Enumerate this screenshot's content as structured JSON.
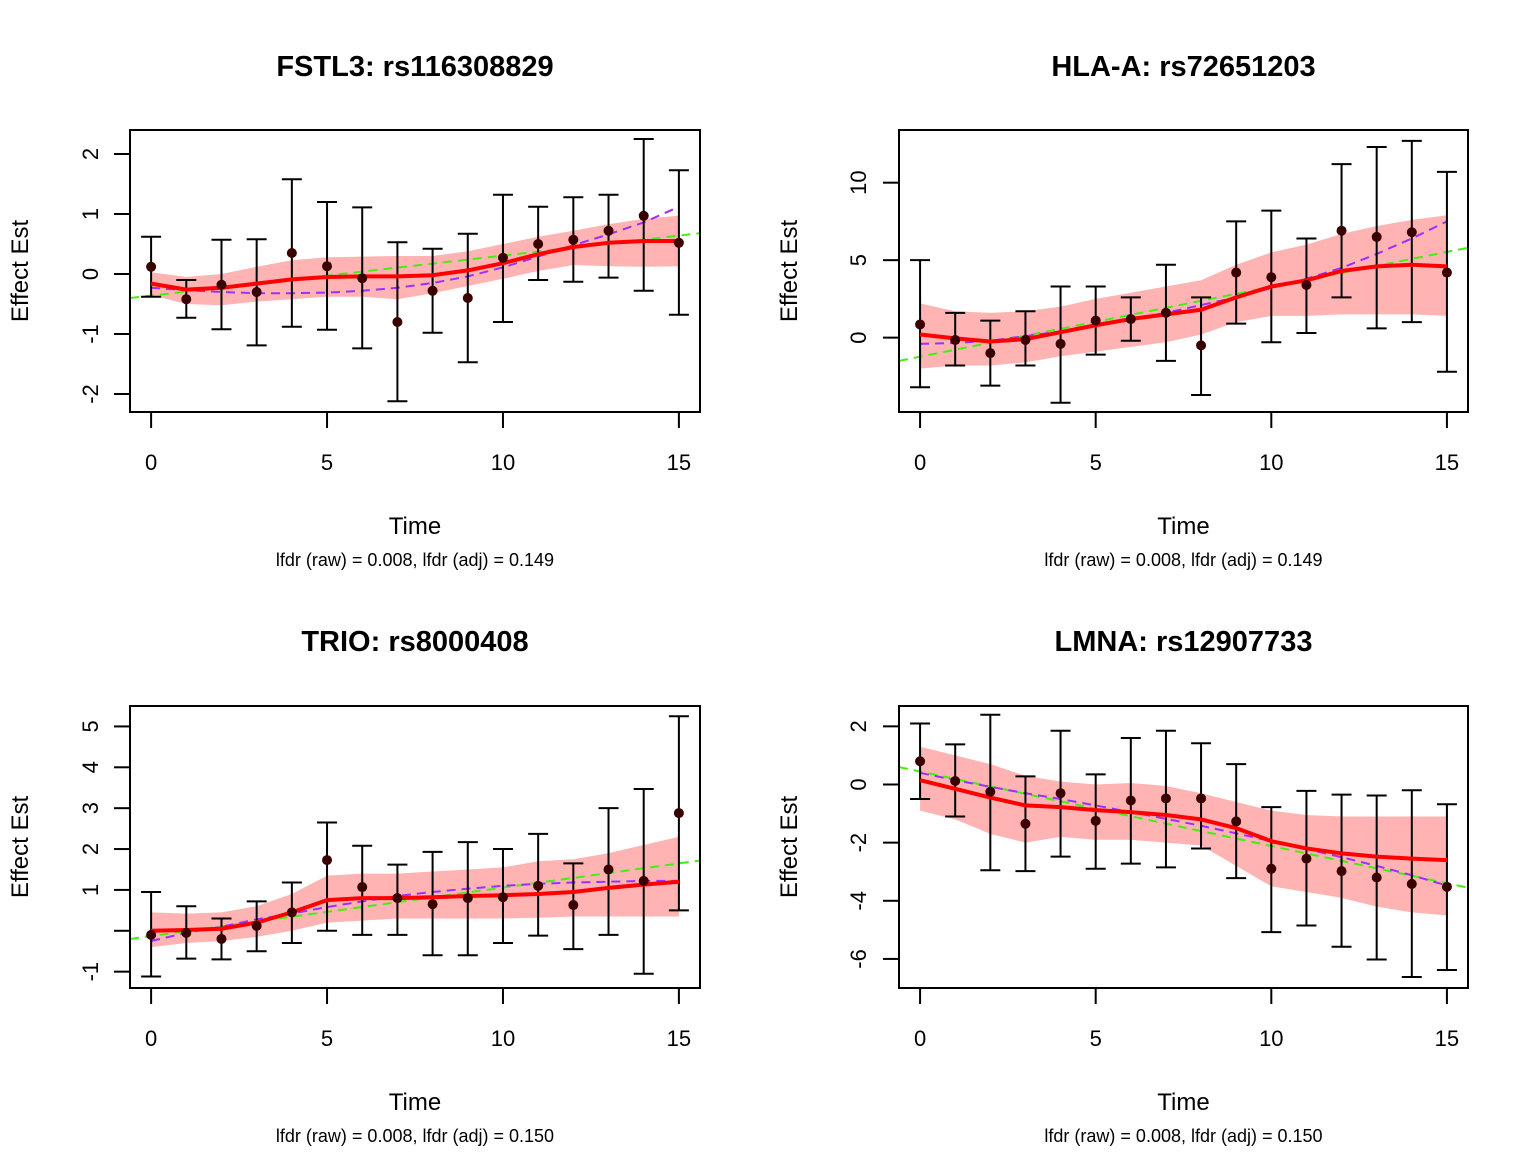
{
  "chart_data": [
    {
      "type": "line",
      "title": "FSTL3: rs116308829",
      "xlabel": "Time",
      "ylabel": "Effect Est",
      "subtitle": "lfdr (raw) = 0.008, lfdr (adj) = 0.149",
      "xlim": [
        -0.6,
        15.6
      ],
      "ylim": [
        -2.3,
        2.4
      ],
      "xticks": [
        0,
        5,
        10,
        15
      ],
      "yticks": [
        -2,
        -1,
        0,
        1,
        2
      ],
      "ytick_labels": [
        "-2",
        "-1",
        "0",
        "1",
        "2"
      ],
      "x": [
        0,
        1,
        2,
        3,
        4,
        5,
        6,
        7,
        8,
        9,
        10,
        11,
        12,
        13,
        14,
        15
      ],
      "series": [
        {
          "name": "estimate",
          "kind": "points",
          "values": [
            0.12,
            -0.42,
            -0.18,
            -0.3,
            0.35,
            0.13,
            -0.07,
            -0.8,
            -0.28,
            -0.4,
            0.27,
            0.5,
            0.57,
            0.72,
            0.97,
            0.52
          ]
        },
        {
          "name": "ci_lower",
          "kind": "errorbar",
          "values": [
            -0.38,
            -0.73,
            -0.92,
            -1.19,
            -0.88,
            -0.93,
            -1.24,
            -2.12,
            -0.98,
            -1.47,
            -0.8,
            -0.1,
            -0.13,
            -0.06,
            -0.28,
            -0.68
          ]
        },
        {
          "name": "ci_upper",
          "kind": "errorbar",
          "values": [
            0.62,
            -0.1,
            0.57,
            0.58,
            1.58,
            1.2,
            1.11,
            0.53,
            0.42,
            0.67,
            1.32,
            1.12,
            1.28,
            1.32,
            2.25,
            1.73
          ]
        },
        {
          "name": "smooth",
          "kind": "line",
          "color": "#ff0000",
          "values": [
            -0.16,
            -0.26,
            -0.23,
            -0.16,
            -0.09,
            -0.05,
            -0.04,
            -0.04,
            -0.02,
            0.06,
            0.18,
            0.33,
            0.45,
            0.52,
            0.55,
            0.55
          ]
        },
        {
          "name": "band_lower",
          "kind": "band",
          "values": [
            -0.35,
            -0.5,
            -0.52,
            -0.46,
            -0.42,
            -0.38,
            -0.38,
            -0.42,
            -0.32,
            -0.2,
            -0.08,
            0.05,
            0.15,
            0.13,
            0.12,
            0.13
          ]
        },
        {
          "name": "band_upper",
          "kind": "band",
          "values": [
            0.03,
            -0.05,
            0.0,
            0.12,
            0.23,
            0.28,
            0.29,
            0.3,
            0.3,
            0.38,
            0.5,
            0.62,
            0.72,
            0.83,
            0.92,
            0.97
          ]
        },
        {
          "name": "quadratic_fit",
          "kind": "dashed",
          "color": "#9b30ff",
          "values": [
            -0.23,
            -0.27,
            -0.3,
            -0.32,
            -0.32,
            -0.31,
            -0.28,
            -0.23,
            -0.15,
            -0.04,
            0.11,
            0.29,
            0.48,
            0.66,
            0.86,
            1.12
          ]
        },
        {
          "name": "linear_fit",
          "kind": "dashed",
          "color": "#44ee11",
          "x": [
            -0.6,
            15.6
          ],
          "values": [
            -0.4,
            0.68
          ]
        }
      ]
    },
    {
      "type": "line",
      "title": "HLA-A: rs72651203",
      "xlabel": "Time",
      "ylabel": "Effect Est",
      "subtitle": "lfdr (raw) = 0.008, lfdr (adj) = 0.149",
      "xlim": [
        -0.6,
        15.6
      ],
      "ylim": [
        -4.8,
        13.4
      ],
      "xticks": [
        0,
        5,
        10,
        15
      ],
      "yticks": [
        0,
        5,
        10
      ],
      "ytick_labels": [
        "0",
        "5",
        "10"
      ],
      "x": [
        0,
        1,
        2,
        3,
        4,
        5,
        6,
        7,
        8,
        9,
        10,
        11,
        12,
        13,
        14,
        15
      ],
      "series": [
        {
          "name": "estimate",
          "kind": "points",
          "values": [
            0.85,
            -0.15,
            -1.0,
            -0.15,
            -0.4,
            1.1,
            1.2,
            1.6,
            -0.5,
            4.2,
            3.9,
            3.4,
            6.9,
            6.5,
            6.8,
            4.2
          ]
        },
        {
          "name": "ci_lower",
          "kind": "errorbar",
          "values": [
            -3.2,
            -1.8,
            -3.1,
            -1.8,
            -4.2,
            -1.1,
            -0.2,
            -1.5,
            -3.7,
            0.9,
            -0.3,
            0.3,
            2.6,
            0.6,
            1.0,
            -2.2
          ]
        },
        {
          "name": "ci_upper",
          "kind": "errorbar",
          "values": [
            5.0,
            1.6,
            1.1,
            1.7,
            3.3,
            3.3,
            2.6,
            4.7,
            2.6,
            7.5,
            8.2,
            6.4,
            11.2,
            12.3,
            12.7,
            10.7
          ]
        },
        {
          "name": "smooth",
          "kind": "line",
          "color": "#ff0000",
          "values": [
            0.2,
            -0.05,
            -0.25,
            -0.1,
            0.35,
            0.8,
            1.2,
            1.5,
            1.8,
            2.6,
            3.3,
            3.7,
            4.3,
            4.6,
            4.7,
            4.6
          ]
        },
        {
          "name": "band_lower",
          "kind": "band",
          "values": [
            -2.0,
            -1.8,
            -1.8,
            -1.6,
            -1.2,
            -0.9,
            -0.6,
            -0.3,
            0.2,
            1.0,
            1.4,
            1.4,
            1.5,
            1.5,
            1.5,
            1.4
          ]
        },
        {
          "name": "band_upper",
          "kind": "band",
          "values": [
            2.2,
            1.7,
            1.6,
            1.7,
            2.0,
            2.5,
            2.9,
            3.3,
            3.7,
            4.7,
            5.5,
            6.0,
            6.7,
            7.2,
            7.6,
            7.9
          ]
        },
        {
          "name": "quadratic_fit",
          "kind": "dashed",
          "color": "#9b30ff",
          "values": [
            -0.4,
            -0.35,
            -0.2,
            0.1,
            0.4,
            0.8,
            1.2,
            1.6,
            2.1,
            2.6,
            3.2,
            3.8,
            4.5,
            5.4,
            6.4,
            7.5
          ]
        },
        {
          "name": "linear_fit",
          "kind": "dashed",
          "color": "#44ee11",
          "x": [
            -0.6,
            15.6
          ],
          "values": [
            -1.5,
            5.8
          ]
        }
      ]
    },
    {
      "type": "line",
      "title": "TRIO: rs8000408",
      "xlabel": "Time",
      "ylabel": "Effect Est",
      "subtitle": "lfdr (raw) = 0.008, lfdr (adj) = 0.150",
      "xlim": [
        -0.6,
        15.6
      ],
      "ylim": [
        -1.4,
        5.5
      ],
      "xticks": [
        0,
        5,
        10,
        15
      ],
      "yticks": [
        -1,
        0,
        1,
        2,
        3,
        4,
        5
      ],
      "ytick_labels": [
        "-1",
        "",
        "1",
        "2",
        "3",
        "4",
        "5"
      ],
      "x": [
        0,
        1,
        2,
        3,
        4,
        5,
        6,
        7,
        8,
        9,
        10,
        11,
        12,
        13,
        14,
        15
      ],
      "series": [
        {
          "name": "estimate",
          "kind": "points",
          "values": [
            -0.1,
            -0.05,
            -0.2,
            0.12,
            0.45,
            1.73,
            1.07,
            0.8,
            0.65,
            0.8,
            0.82,
            1.1,
            0.63,
            1.5,
            1.22,
            2.88
          ]
        },
        {
          "name": "ci_lower",
          "kind": "errorbar",
          "values": [
            -1.12,
            -0.68,
            -0.7,
            -0.5,
            -0.3,
            0.0,
            -0.1,
            -0.1,
            -0.6,
            -0.6,
            -0.3,
            -0.12,
            -0.45,
            -0.1,
            -1.05,
            0.5
          ]
        },
        {
          "name": "ci_upper",
          "kind": "errorbar",
          "values": [
            0.95,
            0.6,
            0.3,
            0.72,
            1.18,
            2.65,
            2.08,
            1.62,
            1.93,
            2.17,
            2.0,
            2.37,
            1.65,
            3.0,
            3.47,
            5.25
          ]
        },
        {
          "name": "smooth",
          "kind": "line",
          "color": "#ff0000",
          "values": [
            0.0,
            0.02,
            0.05,
            0.2,
            0.45,
            0.75,
            0.8,
            0.8,
            0.82,
            0.85,
            0.87,
            0.9,
            0.95,
            1.05,
            1.13,
            1.2
          ]
        },
        {
          "name": "band_lower",
          "kind": "band",
          "values": [
            -0.4,
            -0.3,
            -0.25,
            -0.15,
            0.0,
            0.2,
            0.25,
            0.3,
            0.3,
            0.3,
            0.3,
            0.32,
            0.35,
            0.35,
            0.35,
            0.35
          ]
        },
        {
          "name": "band_upper",
          "kind": "band",
          "values": [
            0.45,
            0.42,
            0.45,
            0.6,
            0.9,
            1.35,
            1.4,
            1.4,
            1.45,
            1.5,
            1.55,
            1.7,
            1.75,
            1.9,
            2.1,
            2.3
          ]
        },
        {
          "name": "quadratic_fit",
          "kind": "dashed",
          "color": "#9b30ff",
          "values": [
            -0.25,
            -0.05,
            0.1,
            0.28,
            0.42,
            0.58,
            0.72,
            0.85,
            0.95,
            1.03,
            1.1,
            1.15,
            1.18,
            1.2,
            1.22,
            1.22
          ]
        },
        {
          "name": "linear_fit",
          "kind": "dashed",
          "color": "#44ee11",
          "x": [
            -0.6,
            15.6
          ],
          "values": [
            -0.2,
            1.72
          ]
        }
      ]
    },
    {
      "type": "line",
      "title": "LMNA: rs12907733",
      "xlabel": "Time",
      "ylabel": "Effect Est",
      "subtitle": "lfdr (raw) = 0.008, lfdr (adj) = 0.150",
      "xlim": [
        -0.6,
        15.6
      ],
      "ylim": [
        -7.0,
        2.7
      ],
      "xticks": [
        0,
        5,
        10,
        15
      ],
      "yticks": [
        -6,
        -4,
        -2,
        0,
        2
      ],
      "ytick_labels": [
        "-6",
        "-4",
        "-2",
        "0",
        "2"
      ],
      "x": [
        0,
        1,
        2,
        3,
        4,
        5,
        6,
        7,
        8,
        9,
        10,
        11,
        12,
        13,
        14,
        15
      ],
      "series": [
        {
          "name": "estimate",
          "kind": "points",
          "values": [
            0.8,
            0.12,
            -0.25,
            -1.35,
            -0.3,
            -1.25,
            -0.55,
            -0.48,
            -0.48,
            -1.27,
            -2.9,
            -2.55,
            -2.98,
            -3.2,
            -3.42,
            -3.52
          ]
        },
        {
          "name": "ci_lower",
          "kind": "errorbar",
          "values": [
            -0.5,
            -1.1,
            -2.95,
            -2.98,
            -2.48,
            -2.9,
            -2.72,
            -2.85,
            -2.2,
            -3.22,
            -5.08,
            -4.85,
            -5.58,
            -6.02,
            -6.62,
            -6.38
          ]
        },
        {
          "name": "ci_upper",
          "kind": "errorbar",
          "values": [
            2.1,
            1.38,
            2.4,
            0.28,
            1.85,
            0.35,
            1.6,
            1.85,
            1.42,
            0.7,
            -0.78,
            -0.22,
            -0.35,
            -0.38,
            -0.2,
            -0.68
          ]
        },
        {
          "name": "smooth",
          "kind": "line",
          "color": "#ff0000",
          "values": [
            0.15,
            -0.15,
            -0.45,
            -0.72,
            -0.78,
            -0.88,
            -0.95,
            -1.05,
            -1.2,
            -1.5,
            -1.95,
            -2.2,
            -2.37,
            -2.48,
            -2.55,
            -2.6
          ]
        },
        {
          "name": "band_lower",
          "kind": "band",
          "values": [
            -0.9,
            -1.2,
            -1.7,
            -2.0,
            -1.8,
            -1.9,
            -1.9,
            -2.0,
            -2.1,
            -2.8,
            -3.5,
            -3.7,
            -3.9,
            -4.2,
            -4.4,
            -4.5
          ]
        },
        {
          "name": "band_upper",
          "kind": "band",
          "values": [
            1.3,
            1.0,
            0.7,
            0.3,
            0.1,
            0.0,
            0.05,
            -0.05,
            -0.3,
            -0.6,
            -0.9,
            -1.05,
            -1.1,
            -1.1,
            -1.1,
            -1.1
          ]
        },
        {
          "name": "quadratic_fit",
          "kind": "dashed",
          "color": "#9b30ff",
          "values": [
            0.4,
            0.15,
            -0.08,
            -0.3,
            -0.5,
            -0.72,
            -0.95,
            -1.18,
            -1.42,
            -1.68,
            -1.95,
            -2.22,
            -2.5,
            -2.8,
            -3.12,
            -3.48
          ]
        },
        {
          "name": "linear_fit",
          "kind": "dashed",
          "color": "#44ee11",
          "x": [
            -0.6,
            15.6
          ],
          "values": [
            0.6,
            -3.55
          ]
        }
      ]
    }
  ],
  "colors": {
    "smooth": "#ff0000",
    "band": "#ffb3b3",
    "quadratic": "#9b30ff",
    "linear": "#44ee11",
    "point": "#3a0000",
    "axis": "#000000"
  }
}
